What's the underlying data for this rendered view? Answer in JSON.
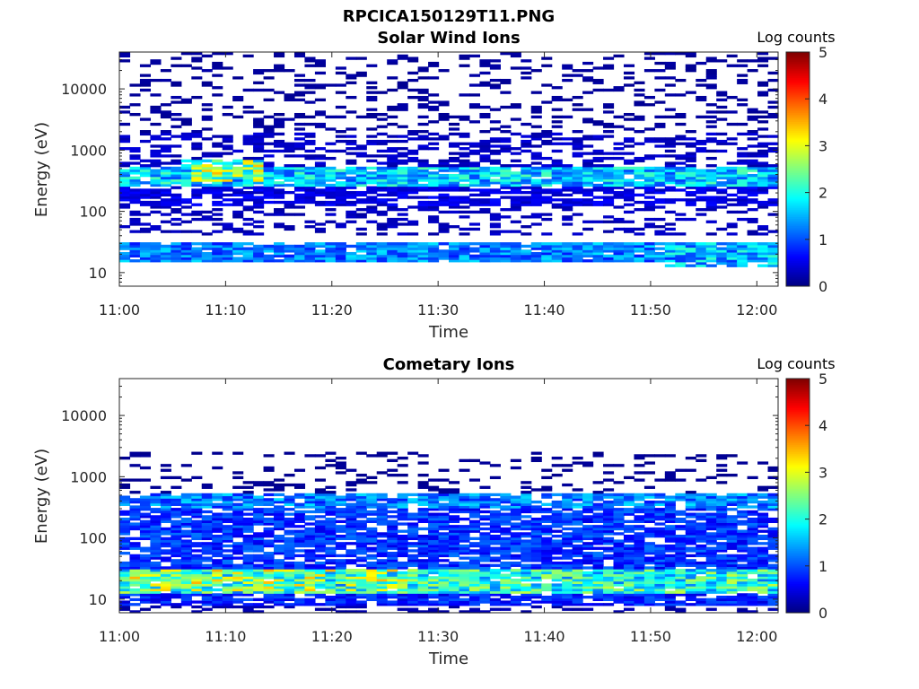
{
  "figure_title": "RPCICA150129T11.PNG",
  "chart_data": [
    {
      "type": "heatmap",
      "title": "Solar Wind Ions",
      "xlabel": "Time",
      "ylabel": "Energy (eV)",
      "x_ticks": [
        "11:00",
        "11:10",
        "11:20",
        "11:30",
        "11:40",
        "11:50",
        "12:00"
      ],
      "y_ticks": [
        "10",
        "100",
        "1000",
        "10000"
      ],
      "y_scale": "log",
      "x_range": [
        "11:00",
        "12:02"
      ],
      "y_range": [
        6,
        40000
      ],
      "colorbar": {
        "label": "Log counts",
        "ticks": [
          "0",
          "1",
          "2",
          "3",
          "4",
          "5"
        ],
        "range": [
          0,
          5
        ],
        "colormap": "jet"
      },
      "n_time_bins": 64,
      "n_energy_bins": 96,
      "components": [
        {
          "kind": "band",
          "t": [
            0,
            64
          ],
          "e": [
            15,
            30
          ],
          "level": 1.3,
          "fill": 0.93
        },
        {
          "kind": "band",
          "t": [
            0,
            64
          ],
          "e": [
            250,
            550
          ],
          "level": 1.7,
          "fill": 0.9
        },
        {
          "kind": "band",
          "t": [
            0,
            64
          ],
          "e": [
            120,
            260
          ],
          "level": 0.5,
          "fill": 0.65
        },
        {
          "kind": "band",
          "t": [
            0,
            64
          ],
          "e": [
            550,
            1900
          ],
          "level": 0.35,
          "fill": 0.4
        },
        {
          "kind": "band",
          "t": [
            0,
            64
          ],
          "e": [
            1900,
            40000
          ],
          "level": 0.15,
          "fill": 0.22
        },
        {
          "kind": "band",
          "t": [
            0,
            64
          ],
          "e": [
            40,
            120
          ],
          "level": 0.3,
          "fill": 0.28
        },
        {
          "kind": "band",
          "t": [
            6,
            14
          ],
          "e": [
            300,
            700
          ],
          "level": 2.6,
          "fill": 0.9
        },
        {
          "kind": "band",
          "t": [
            53,
            64
          ],
          "e": [
            12,
            30
          ],
          "level": 1.6,
          "fill": 0.8
        }
      ]
    },
    {
      "type": "heatmap",
      "title": "Cometary Ions",
      "xlabel": "Time",
      "ylabel": "Energy (eV)",
      "x_ticks": [
        "11:00",
        "11:10",
        "11:20",
        "11:30",
        "11:40",
        "11:50",
        "12:00"
      ],
      "y_ticks": [
        "10",
        "100",
        "1000",
        "10000"
      ],
      "y_scale": "log",
      "x_range": [
        "11:00",
        "12:02"
      ],
      "y_range": [
        6,
        40000
      ],
      "colorbar": {
        "label": "Log counts",
        "ticks": [
          "0",
          "1",
          "2",
          "3",
          "4",
          "5"
        ],
        "range": [
          0,
          5
        ],
        "colormap": "jet"
      },
      "n_time_bins": 64,
      "n_energy_bins": 96,
      "components": [
        {
          "kind": "band",
          "t": [
            0,
            64
          ],
          "e": [
            13,
            30
          ],
          "level": 2.1,
          "fill": 0.95
        },
        {
          "kind": "band",
          "t": [
            0,
            64
          ],
          "e": [
            8,
            13
          ],
          "level": 0.8,
          "fill": 0.85
        },
        {
          "kind": "band",
          "t": [
            0,
            64
          ],
          "e": [
            30,
            300
          ],
          "level": 0.9,
          "fill": 0.8
        },
        {
          "kind": "band",
          "t": [
            0,
            64
          ],
          "e": [
            300,
            550
          ],
          "level": 1.3,
          "fill": 0.85
        },
        {
          "kind": "band",
          "t": [
            0,
            64
          ],
          "e": [
            550,
            2500
          ],
          "level": 0.1,
          "fill": 0.18
        },
        {
          "kind": "band",
          "t": [
            0,
            64
          ],
          "e": [
            6,
            8
          ],
          "level": 0.2,
          "fill": 0.35
        },
        {
          "kind": "band",
          "t": [
            0,
            28
          ],
          "e": [
            14,
            30
          ],
          "level": 2.6,
          "fill": 0.7
        }
      ]
    }
  ]
}
